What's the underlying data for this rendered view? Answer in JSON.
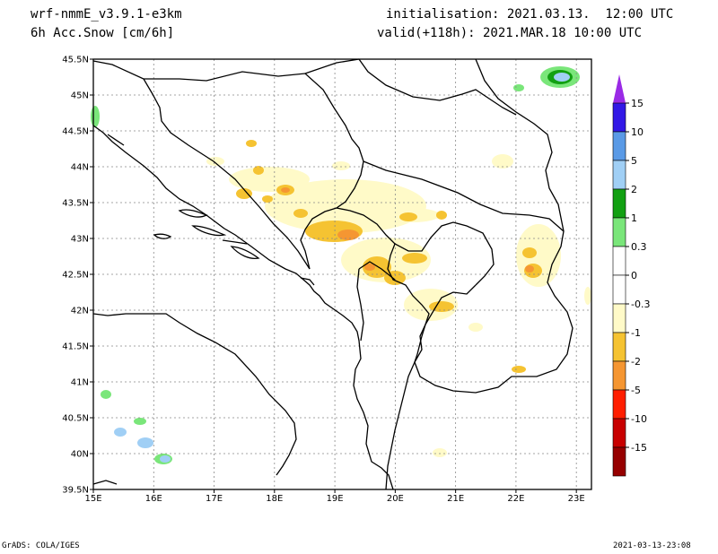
{
  "header": {
    "model": "wrf-nmmE_v3.9.1-e3km",
    "variable": "6h Acc.Snow [cm/6h]",
    "initialisation": "initialisation: 2021.03.13.  12:00 UTC",
    "valid": "valid(+118h): 2021.MAR.18 10:00 UTC"
  },
  "map": {
    "lon_range": [
      15,
      23.25
    ],
    "lat_range": [
      39.5,
      45.5
    ],
    "lon_ticks": [
      "15E",
      "16E",
      "17E",
      "18E",
      "19E",
      "20E",
      "21E",
      "22E",
      "23E"
    ],
    "lat_ticks": [
      "39.5N",
      "40N",
      "40.5N",
      "41N",
      "41.5N",
      "42N",
      "42.5N",
      "43N",
      "43.5N",
      "44N",
      "44.5N",
      "45N",
      "45.5N"
    ],
    "grid": "dotted"
  },
  "colorbar": {
    "labels": [
      "15",
      "10",
      "5",
      "2",
      "1",
      "0.3",
      "0",
      "-0.3",
      "-1",
      "-2",
      "-5",
      "-10",
      "-15"
    ],
    "colors": [
      "#3218e6",
      "#5a9ae6",
      "#a0cff5",
      "#12a012",
      "#7ae67a",
      "#ffffff",
      "#ffffff",
      "#fffac8",
      "#f5c332",
      "#f59632",
      "#ff1e00",
      "#c80000",
      "#960000"
    ],
    "top_arrow_color": "#9a2ae6",
    "bottom_arrow_color": "#8c0000"
  },
  "footer": {
    "left": "GrADS: COLA/IGES",
    "right": "2021-03-13-23:08"
  }
}
